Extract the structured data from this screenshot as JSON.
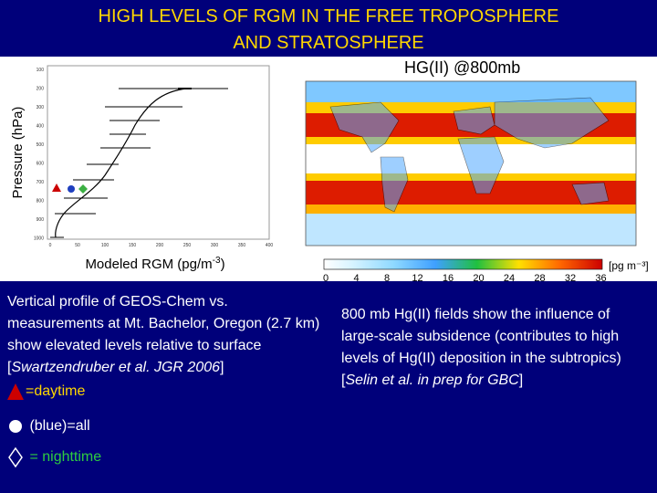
{
  "slide": {
    "title_line1": "HIGH LEVELS OF RGM IN THE FREE TROPOSPHERE",
    "title_line2": "AND STRATOSPHERE"
  },
  "profile_plot": {
    "ylabel": "Pressure (hPa)",
    "xlabel": "Modeled RGM (pg/m-3)",
    "xlabel_main": "Modeled RGM (pg/m",
    "xlabel_sup": "-3",
    "xlabel_end": ")",
    "y_ticks": [
      "100",
      "200",
      "300",
      "400",
      "500",
      "600",
      "700",
      "800",
      "900",
      "1000"
    ],
    "x_ticks": [
      "0",
      "50",
      "100",
      "150",
      "200",
      "250",
      "300",
      "350",
      "400"
    ],
    "marker_colors": {
      "daytime": "#cc0000",
      "all": "#1f3fbf",
      "nighttime": "#3cb043"
    }
  },
  "map": {
    "title": "HG(II) @800mb",
    "colorbar_ticks": [
      "0",
      "4",
      "8",
      "12",
      "16",
      "20",
      "24",
      "28",
      "32",
      "36"
    ],
    "colorbar_unit": "[pg m⁻³]"
  },
  "left_caption": {
    "text": "Vertical profile of GEOS-Chem vs. measurements at Mt. Bachelor, Oregon (2.7 km) show elevated levels relative to surface [",
    "citation": "Swartzendruber et al. JGR 2006",
    "close": "]"
  },
  "legend": [
    {
      "symbol": "triangle",
      "label": "=daytime",
      "color": "#cc0000"
    },
    {
      "symbol": "circle",
      "label": " (blue)=all",
      "color": "#ffffff"
    },
    {
      "symbol": "diamond",
      "label": " = nighttime",
      "color": "#ffffff"
    }
  ],
  "right_caption": {
    "text": "800 mb Hg(II) fields show the influence of large-scale subsidence (contributes to high levels of Hg(II) deposition in the subtropics) [",
    "citation": "Selin et al. in prep for GBC",
    "close": "]"
  },
  "colors": {
    "background": "#00007a",
    "title": "#ffd700",
    "daytime_text": "#ffd700",
    "nighttime_text": "#2ecc40"
  }
}
